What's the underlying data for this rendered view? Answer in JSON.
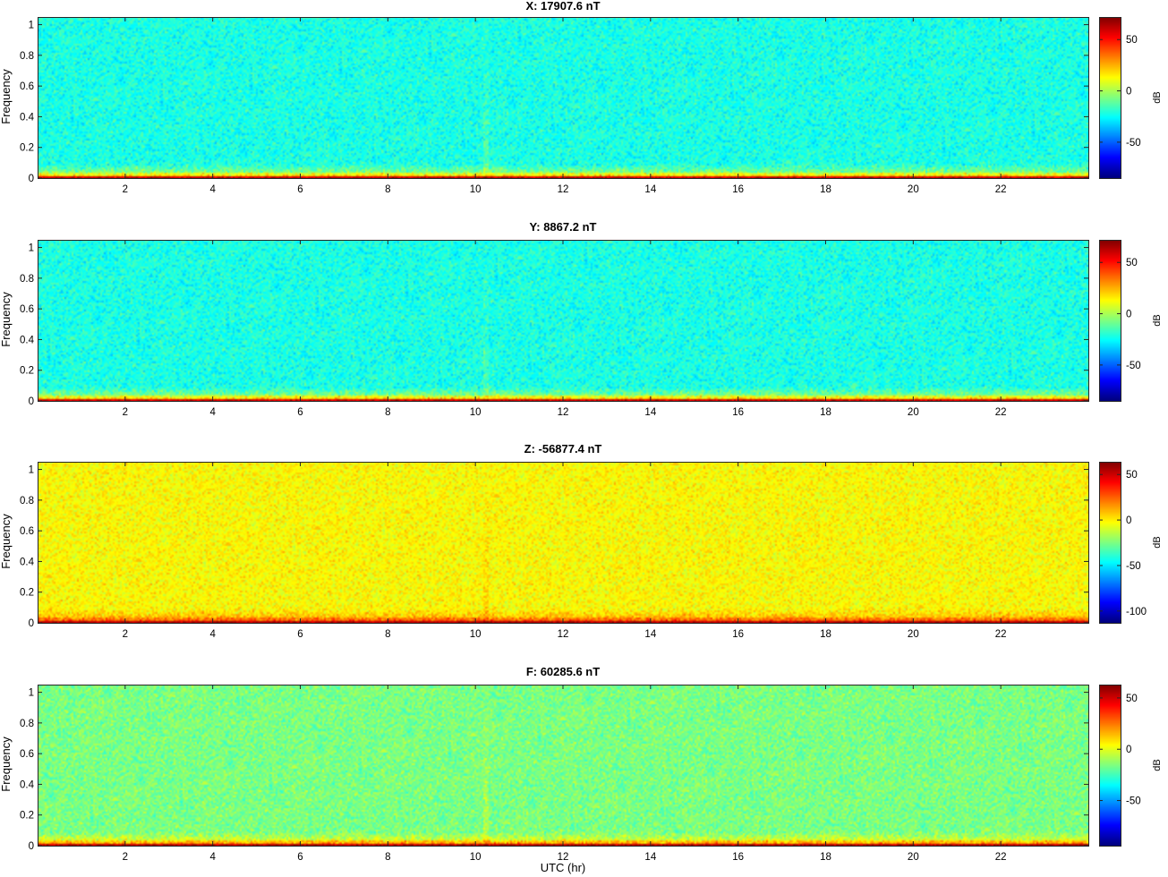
{
  "chart_data": [
    {
      "type": "heatmap",
      "title": "X: 17907.6 nT",
      "ylabel": "Frequency",
      "xlabel": "",
      "xlim": [
        0,
        24
      ],
      "ylim": [
        0,
        1.05
      ],
      "xticks": [
        "2",
        "4",
        "6",
        "8",
        "10",
        "12",
        "14",
        "16",
        "18",
        "20",
        "22"
      ],
      "yticks": [
        "0",
        "0.2",
        "0.4",
        "0.6",
        "0.8",
        "1"
      ],
      "colorbar": {
        "label": "dB",
        "clim": [
          -85,
          72
        ],
        "ticks": [
          "50",
          "0",
          "-50"
        ],
        "tick_values": [
          50,
          0,
          -50
        ],
        "colormap": "jet"
      },
      "background_level_db": -22,
      "low_frequency_level_db": 60
    },
    {
      "type": "heatmap",
      "title": "Y: 8867.2 nT",
      "ylabel": "Frequency",
      "xlabel": "",
      "xlim": [
        0,
        24
      ],
      "ylim": [
        0,
        1.05
      ],
      "xticks": [
        "2",
        "4",
        "6",
        "8",
        "10",
        "12",
        "14",
        "16",
        "18",
        "20",
        "22"
      ],
      "yticks": [
        "0",
        "0.2",
        "0.4",
        "0.6",
        "0.8",
        "1"
      ],
      "colorbar": {
        "label": "dB",
        "clim": [
          -85,
          72
        ],
        "ticks": [
          "50",
          "0",
          "-50"
        ],
        "tick_values": [
          50,
          0,
          -50
        ],
        "colormap": "jet"
      },
      "background_level_db": -22,
      "low_frequency_level_db": 60
    },
    {
      "type": "heatmap",
      "title": "Z: -56877.4 nT",
      "ylabel": "Frequency",
      "xlabel": "",
      "xlim": [
        0,
        24
      ],
      "ylim": [
        0,
        1.05
      ],
      "xticks": [
        "2",
        "4",
        "6",
        "8",
        "10",
        "12",
        "14",
        "16",
        "18",
        "20",
        "22"
      ],
      "yticks": [
        "0",
        "0.2",
        "0.4",
        "0.6",
        "0.8",
        "1"
      ],
      "colorbar": {
        "label": "dB",
        "clim": [
          -113,
          64
        ],
        "ticks": [
          "50",
          "0",
          "-50",
          "-100"
        ],
        "tick_values": [
          50,
          0,
          -50,
          -100
        ],
        "colormap": "jet"
      },
      "background_level_db": -2,
      "low_frequency_level_db": 55
    },
    {
      "type": "heatmap",
      "title": "F: 60285.6 nT",
      "ylabel": "Frequency",
      "xlabel": "UTC (hr)",
      "xlim": [
        0,
        24
      ],
      "ylim": [
        0,
        1.05
      ],
      "xticks": [
        "2",
        "4",
        "6",
        "8",
        "10",
        "12",
        "14",
        "16",
        "18",
        "20",
        "22"
      ],
      "yticks": [
        "0",
        "0.2",
        "0.4",
        "0.6",
        "0.8",
        "1"
      ],
      "colorbar": {
        "label": "dB",
        "clim": [
          -94,
          63
        ],
        "ticks": [
          "50",
          "0",
          "-50"
        ],
        "tick_values": [
          50,
          0,
          -50
        ],
        "colormap": "jet"
      },
      "background_level_db": -16,
      "low_frequency_level_db": 55
    }
  ]
}
